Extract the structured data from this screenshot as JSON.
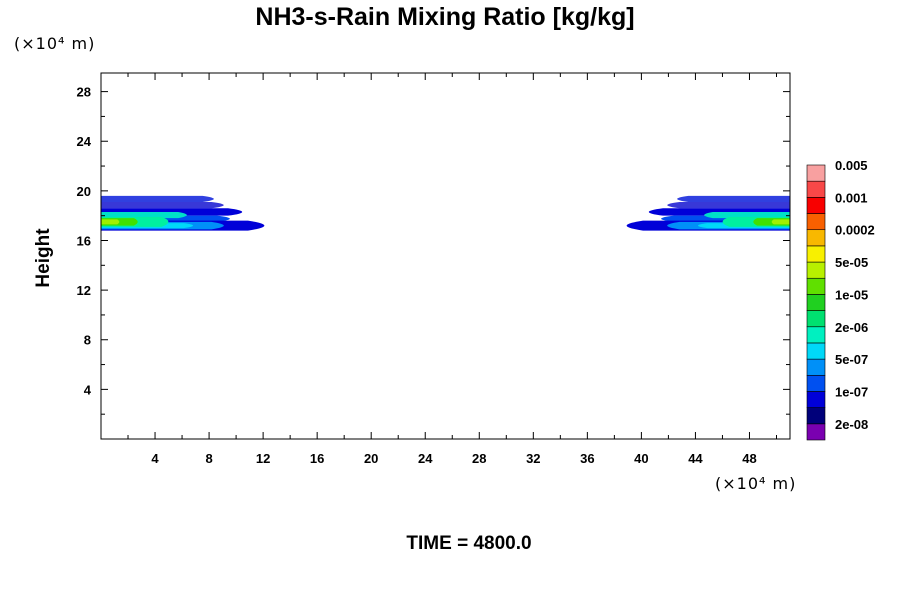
{
  "chart_data": {
    "type": "heatmap",
    "title": "NH3-s-Rain Mixing Ratio [kg/kg]",
    "xlabel": "",
    "ylabel": "Height",
    "x_unit": "(×10⁴ m)",
    "y_unit": "(×10⁴ m)",
    "xlim": [
      0,
      51
    ],
    "ylim": [
      0,
      29.5
    ],
    "x_ticks": [
      4,
      8,
      12,
      16,
      20,
      24,
      28,
      32,
      36,
      40,
      44,
      48
    ],
    "y_ticks": [
      4,
      8,
      12,
      16,
      20,
      24,
      28
    ],
    "time_label": "TIME = 4800.0",
    "colorbar": {
      "colors": [
        "#7a00b0",
        "#00007a",
        "#0000d8",
        "#0050f0",
        "#0090f8",
        "#00d8f8",
        "#00f0c0",
        "#00e070",
        "#20d020",
        "#60e000",
        "#b8f000",
        "#f8f000",
        "#f8b800",
        "#f86000",
        "#f80000",
        "#f84848",
        "#f8a0a0"
      ],
      "labels": [
        {
          "text": "2e-08",
          "level": 1
        },
        {
          "text": "1e-07",
          "level": 3
        },
        {
          "text": "5e-07",
          "level": 5
        },
        {
          "text": "2e-06",
          "level": 7
        },
        {
          "text": "1e-05",
          "level": 9
        },
        {
          "text": "5e-05",
          "level": 11
        },
        {
          "text": "0.0002",
          "level": 13
        },
        {
          "text": "0.001",
          "level": 15
        },
        {
          "text": "0.005",
          "level": 17
        }
      ]
    },
    "regions": [
      {
        "side": "left",
        "layers": [
          {
            "y": [
              19.1,
              19.6
            ],
            "x_end": 9.2,
            "color": "#3040e0"
          },
          {
            "y": [
              18.6,
              19.1
            ],
            "x_end": 10.0,
            "color": "#3838d8"
          },
          {
            "y": [
              18.0,
              18.6
            ],
            "x_end": 11.5,
            "color": "#0000d8"
          },
          {
            "y": [
              17.5,
              18.0
            ],
            "x_end": 10.5,
            "color": "#0050f0"
          },
          {
            "y": [
              17.8,
              18.3
            ],
            "x_end": 7.0,
            "color": "#00e0c8"
          },
          {
            "y": [
              16.8,
              17.6
            ],
            "x_end": 13.3,
            "color": "#0000d8"
          },
          {
            "y": [
              16.9,
              17.5
            ],
            "x_end": 10.0,
            "color": "#0090f8"
          },
          {
            "y": [
              17.0,
              17.4
            ],
            "x_end": 7.5,
            "color": "#00d8f8"
          },
          {
            "y": [
              17.1,
              17.9
            ],
            "x_end": 5.5,
            "color": "#00f0a0"
          },
          {
            "y": [
              17.2,
              17.8
            ],
            "x_end": 3.0,
            "color": "#40e000"
          },
          {
            "y": [
              17.3,
              17.7
            ],
            "x_end": 1.5,
            "color": "#a0f000"
          }
        ]
      },
      {
        "side": "right",
        "layers": [
          {
            "y": [
              19.1,
              19.6
            ],
            "x_end": 9.2,
            "color": "#3040e0"
          },
          {
            "y": [
              18.6,
              19.1
            ],
            "x_end": 10.0,
            "color": "#3838d8"
          },
          {
            "y": [
              18.0,
              18.6
            ],
            "x_end": 11.5,
            "color": "#0000d8"
          },
          {
            "y": [
              17.5,
              18.0
            ],
            "x_end": 10.5,
            "color": "#0050f0"
          },
          {
            "y": [
              17.8,
              18.3
            ],
            "x_end": 7.0,
            "color": "#00e0c8"
          },
          {
            "y": [
              16.8,
              17.6
            ],
            "x_end": 13.3,
            "color": "#0000d8"
          },
          {
            "y": [
              16.9,
              17.5
            ],
            "x_end": 10.0,
            "color": "#0090f8"
          },
          {
            "y": [
              17.0,
              17.4
            ],
            "x_end": 7.5,
            "color": "#00d8f8"
          },
          {
            "y": [
              17.1,
              17.9
            ],
            "x_end": 5.5,
            "color": "#00f0a0"
          },
          {
            "y": [
              17.2,
              17.8
            ],
            "x_end": 3.0,
            "color": "#40e000"
          },
          {
            "y": [
              17.3,
              17.7
            ],
            "x_end": 1.5,
            "color": "#a0f000"
          }
        ]
      }
    ]
  }
}
